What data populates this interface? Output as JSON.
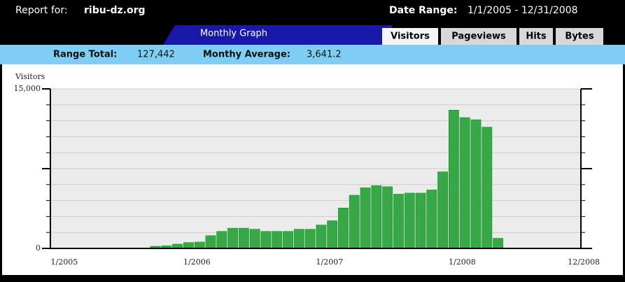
{
  "header": {
    "report_label": "Report for:",
    "site": "ribu-dz.org",
    "date_label": "Date Range:",
    "date_range": "1/1/2005 - 12/31/2008"
  },
  "tabs": {
    "title": "Monthly Graph",
    "items": [
      "Visitors",
      "Pageviews",
      "Hits",
      "Bytes"
    ]
  },
  "summary": {
    "range_total_label": "Range Total:",
    "range_total": "127,442",
    "monthly_average_label": "Monthy Average:",
    "monthly_average": "3,641.2"
  },
  "chart_data": {
    "type": "bar",
    "y_label": "Visitors",
    "color": "#36a846",
    "categories": [
      "1/2005",
      null,
      null,
      null,
      null,
      null,
      null,
      null,
      null,
      null,
      null,
      null,
      "1/2006",
      null,
      null,
      null,
      null,
      null,
      null,
      null,
      null,
      null,
      null,
      null,
      "1/2007",
      null,
      null,
      null,
      null,
      null,
      null,
      null,
      null,
      null,
      null,
      null,
      "1/2008",
      null,
      null,
      null,
      null,
      null,
      null,
      null,
      null,
      null,
      null,
      "12/2008"
    ],
    "values": [
      40,
      40,
      40,
      40,
      40,
      40,
      40,
      40,
      40,
      200,
      250,
      400,
      550,
      600,
      1200,
      1600,
      1900,
      1900,
      1800,
      1600,
      1600,
      1600,
      1800,
      1800,
      2200,
      2600,
      3800,
      5000,
      5700,
      5900,
      5800,
      5100,
      5200,
      5200,
      5500,
      7200,
      13000,
      12300,
      12100,
      11400,
      950,
      40,
      40,
      40,
      40,
      40,
      40,
      40
    ],
    "ylim": [
      0,
      15000
    ],
    "yticks": [
      0,
      {
        "value": 15000,
        "label": "15,000"
      }
    ],
    "major_ticks": [
      0,
      7500,
      15000
    ],
    "gridlines": [
      0,
      1500,
      3000,
      4500,
      6000,
      7500,
      9000,
      10500,
      12000,
      13500,
      15000
    ],
    "grid": true
  }
}
